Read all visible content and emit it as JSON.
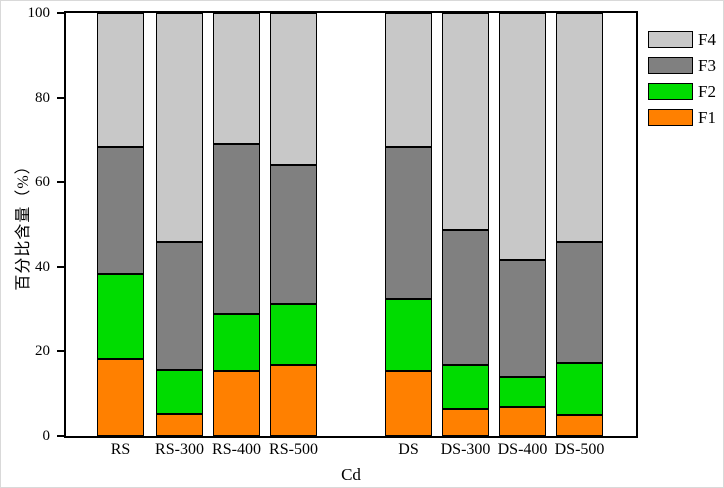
{
  "chart_data": {
    "type": "bar",
    "stacked": true,
    "title": "",
    "xlabel": "Cd",
    "ylabel": "百分比含量（%）",
    "ylim": [
      0,
      100
    ],
    "yticks": [
      0,
      20,
      40,
      60,
      80,
      100
    ],
    "grid": false,
    "categories": [
      "RS",
      "RS-300",
      "RS-400",
      "RS-500",
      "DS",
      "DS-300",
      "DS-400",
      "DS-500"
    ],
    "groups": [
      [
        "RS",
        "RS-300",
        "RS-400",
        "RS-500"
      ],
      [
        "DS",
        "DS-300",
        "DS-400",
        "DS-500"
      ]
    ],
    "series": [
      {
        "name": "F1",
        "color": "#FF8000",
        "values": [
          18.3,
          5.2,
          15.4,
          16.8,
          15.4,
          6.3,
          6.9,
          5.0
        ]
      },
      {
        "name": "F2",
        "color": "#00DC00",
        "values": [
          20.1,
          10.4,
          13.4,
          14.4,
          16.9,
          10.5,
          7.0,
          12.3
        ]
      },
      {
        "name": "F3",
        "color": "#808080",
        "values": [
          30.0,
          30.3,
          40.2,
          32.9,
          36.1,
          31.8,
          27.7,
          28.6
        ]
      },
      {
        "name": "F4",
        "color": "#C8C8C8",
        "values": [
          31.6,
          54.1,
          31.0,
          35.9,
          31.6,
          51.4,
          58.4,
          54.1
        ]
      }
    ],
    "cumulative_tops": {
      "comment_f1_top": [
        18.3,
        5.2,
        15.4,
        16.8,
        15.4,
        6.3,
        6.9,
        5.0
      ],
      "comment_f2_top": [
        38.4,
        15.6,
        28.8,
        31.2,
        32.3,
        16.8,
        13.9,
        17.3
      ],
      "comment_f3_top": [
        68.4,
        45.9,
        69.0,
        64.1,
        68.4,
        48.6,
        41.6,
        45.9
      ],
      "comment_f4_top": [
        100,
        100,
        100,
        100,
        100,
        100,
        100,
        100
      ]
    },
    "legend": {
      "position": "right",
      "order": [
        "F4",
        "F3",
        "F2",
        "F1"
      ]
    },
    "colors": {
      "axis": "#000000",
      "background": "#ffffff"
    }
  }
}
